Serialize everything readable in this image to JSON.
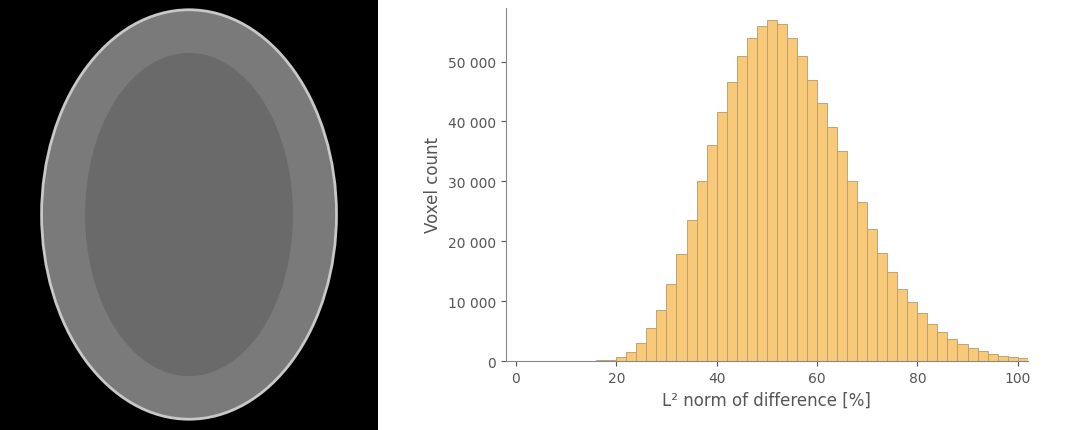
{
  "chart_data": {
    "type": "histogram",
    "x_label": "L² norm of difference [%]",
    "y_label": "Voxel count",
    "bins": [
      0,
      2,
      4,
      6,
      8,
      10,
      12,
      14,
      16,
      18,
      20,
      22,
      24,
      26,
      28,
      30,
      32,
      34,
      36,
      38,
      40,
      42,
      44,
      46,
      48,
      50,
      52,
      54,
      56,
      58,
      60,
      62,
      64,
      66,
      68,
      70,
      72,
      74,
      76,
      78,
      80,
      82,
      84,
      86,
      88,
      90,
      92,
      94,
      96,
      98,
      100,
      102
    ],
    "counts": [
      0,
      0,
      0,
      0,
      0,
      0,
      0,
      50,
      100,
      250,
      600,
      1500,
      3000,
      5500,
      8500,
      12800,
      17800,
      23500,
      30000,
      36000,
      41500,
      46500,
      51000,
      54000,
      56000,
      57000,
      56200,
      54000,
      51000,
      47000,
      43000,
      39000,
      35000,
      30000,
      26500,
      22000,
      18000,
      14800,
      12000,
      9800,
      8000,
      6200,
      4800,
      3700,
      2800,
      2100,
      1600,
      1200,
      900,
      700,
      500
    ],
    "color": "#f9c97a",
    "xlim": [
      -2,
      102
    ],
    "xticks": [
      0,
      20,
      40,
      60,
      80,
      100
    ],
    "ylim": [
      0,
      59000
    ],
    "yticks": [
      0,
      {
        "value": 10000,
        "label": "10 000"
      },
      {
        "value": 20000,
        "label": "20 000"
      },
      {
        "value": 30000,
        "label": "30 000"
      },
      {
        "value": 40000,
        "label": "40 000"
      },
      {
        "value": 50000,
        "label": "50 000"
      }
    ],
    "grid": false
  }
}
